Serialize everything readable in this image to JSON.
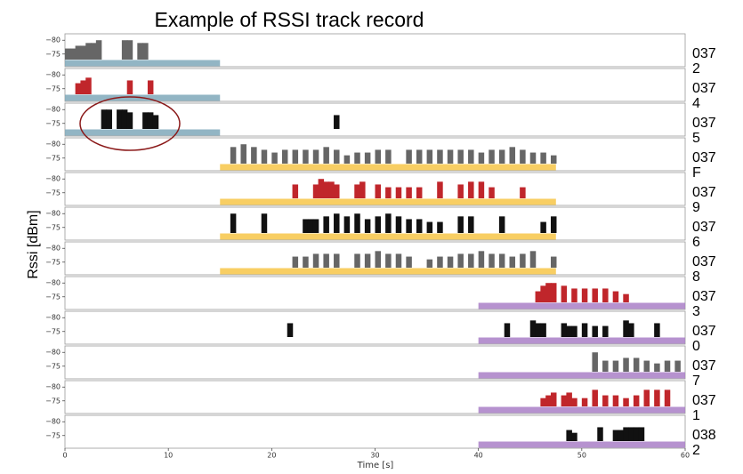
{
  "chart_data": {
    "type": "strips",
    "title": "Example of RSSI track record",
    "xlabel": "Time [s]",
    "ylabel": "Rssi [dBm]",
    "xlim": [
      0,
      60
    ],
    "xticks": [
      0,
      10,
      20,
      30,
      40,
      50,
      60
    ],
    "ylim": [
      -73,
      -82
    ],
    "yticks": [
      {
        "value": -80,
        "label": "−80"
      },
      {
        "value": -75,
        "label": "−75"
      }
    ],
    "panels": [
      {
        "name": "0372",
        "color": "#666666",
        "span": [
          0,
          15
        ],
        "span_color": "#7fa8ba",
        "x": [
          0,
          0.5,
          1,
          1.5,
          2,
          2.5,
          3,
          5.5,
          6,
          7,
          7.5
        ],
        "values": [
          -77,
          -77,
          -78,
          -78,
          -79,
          -79,
          -80,
          -80,
          -80,
          -79,
          -79
        ]
      },
      {
        "name": "0374",
        "color": "#c0262b",
        "span": [
          0,
          15
        ],
        "span_color": "#7fa8ba",
        "x": [
          1,
          1.5,
          2,
          6,
          8
        ],
        "values": [
          -77,
          -78,
          -79,
          -78,
          -78
        ]
      },
      {
        "name": "0375",
        "color": "#111111",
        "span": [
          0,
          15
        ],
        "span_color": "#7fa8ba",
        "x": [
          3.5,
          4,
          5,
          5.5,
          6,
          7.5,
          8,
          8.5,
          26
        ],
        "values": [
          -80,
          -80,
          -80,
          -80,
          -79,
          -79,
          -79,
          -78,
          -78
        ]
      },
      {
        "name": "037F",
        "color": "#666666",
        "span": [
          15,
          47.5
        ],
        "span_color": "#f7c548",
        "x": [
          16,
          17,
          18,
          19,
          20,
          21,
          22,
          23,
          24,
          25,
          26,
          27,
          28,
          29,
          30,
          31,
          33,
          34,
          35,
          36,
          37,
          38,
          39,
          40,
          41,
          42,
          43,
          44,
          45,
          46,
          47
        ],
        "values": [
          -79,
          -80,
          -79,
          -78,
          -77,
          -78,
          -78,
          -78,
          -78,
          -79,
          -78,
          -76,
          -77,
          -77,
          -78,
          -78,
          -78,
          -78,
          -78,
          -78,
          -78,
          -78,
          -78,
          -77,
          -78,
          -78,
          -79,
          -78,
          -77,
          -77,
          -76
        ]
      },
      {
        "name": "0379",
        "color": "#c0262b",
        "span": [
          15,
          47.5
        ],
        "span_color": "#f7c548",
        "x": [
          22,
          24,
          24.5,
          25,
          25.5,
          26,
          28,
          28.5,
          30,
          31,
          32,
          33,
          34,
          36,
          38,
          39,
          40,
          41,
          44
        ],
        "values": [
          -78,
          -78,
          -80,
          -79,
          -79,
          -78,
          -78,
          -79,
          -78,
          -77,
          -77,
          -77,
          -77,
          -79,
          -78,
          -79,
          -79,
          -77,
          -77
        ]
      },
      {
        "name": "0376",
        "color": "#111111",
        "span": [
          15,
          47.5
        ],
        "span_color": "#f7c548",
        "x": [
          16,
          19,
          23,
          23.5,
          24,
          25,
          26,
          27,
          28,
          29,
          30,
          31,
          32,
          33,
          34,
          35,
          36,
          38,
          39,
          42,
          46,
          47
        ],
        "values": [
          -80,
          -80,
          -78,
          -78,
          -78,
          -79,
          -80,
          -79,
          -80,
          -78,
          -79,
          -80,
          -79,
          -78,
          -78,
          -77,
          -77,
          -79,
          -79,
          -79,
          -77,
          -79
        ]
      },
      {
        "name": "0378",
        "color": "#666666",
        "span": [
          15,
          47.5
        ],
        "span_color": "#f7c548",
        "x": [
          22,
          23,
          24,
          25,
          26,
          28,
          29,
          30,
          31,
          32,
          33,
          35,
          36,
          37,
          38,
          39,
          40,
          41,
          42,
          43,
          44,
          45,
          47
        ],
        "values": [
          -77,
          -77,
          -78,
          -78,
          -78,
          -78,
          -78,
          -79,
          -78,
          -78,
          -77,
          -76,
          -77,
          -77,
          -78,
          -78,
          -79,
          -78,
          -78,
          -77,
          -78,
          -79,
          -77
        ]
      },
      {
        "name": "0373",
        "color": "#c0262b",
        "span": [
          40,
          60
        ],
        "span_color": "#a97fc7",
        "x": [
          45.5,
          46,
          46.5,
          47,
          48,
          49,
          50,
          51,
          52,
          53,
          54
        ],
        "values": [
          -77,
          -79,
          -80,
          -80,
          -79,
          -78,
          -78,
          -78,
          -78,
          -77,
          -76
        ]
      },
      {
        "name": "0370",
        "color": "#111111",
        "span": [
          40,
          60
        ],
        "span_color": "#a97fc7",
        "x": [
          21.5,
          42.5,
          45,
          45.5,
          46,
          48,
          48.5,
          49,
          50,
          51,
          52,
          54,
          54.5,
          57
        ],
        "values": [
          -78,
          -78,
          -79,
          -78,
          -78,
          -78,
          -77,
          -77,
          -78,
          -77,
          -77,
          -79,
          -78,
          -78
        ]
      },
      {
        "name": "0377",
        "color": "#666666",
        "span": [
          40,
          60
        ],
        "span_color": "#a97fc7",
        "x": [
          51,
          52,
          53,
          54,
          55,
          56,
          57,
          58,
          59
        ],
        "values": [
          -80,
          -77,
          -77,
          -78,
          -78,
          -77,
          -76,
          -77,
          -77
        ]
      },
      {
        "name": "0371",
        "color": "#c0262b",
        "span": [
          40,
          60
        ],
        "span_color": "#a97fc7",
        "x": [
          46,
          46.5,
          47,
          48,
          48.5,
          49,
          50,
          51,
          52,
          53,
          54,
          55,
          56,
          57,
          58
        ],
        "values": [
          -76,
          -77,
          -78,
          -77,
          -78,
          -76,
          -76,
          -79,
          -77,
          -77,
          -76,
          -77,
          -79,
          -79,
          -79
        ]
      },
      {
        "name": "0382",
        "color": "#111111",
        "span": [
          40,
          60
        ],
        "span_color": "#a97fc7",
        "x": [
          48.5,
          49,
          51.5,
          53,
          53.5,
          54,
          54.5,
          55,
          55.5
        ],
        "values": [
          -77,
          -76,
          -78,
          -77,
          -77,
          -78,
          -78,
          -78,
          -78
        ]
      }
    ]
  }
}
